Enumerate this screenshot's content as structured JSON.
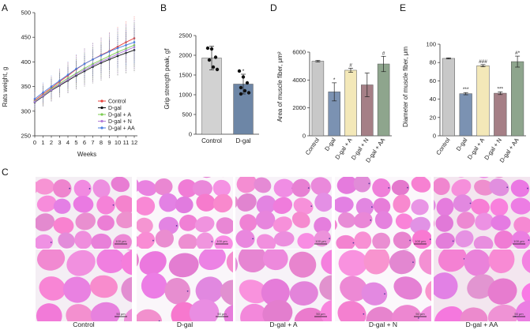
{
  "chart_data": [
    {
      "panel": "A",
      "type": "line",
      "ylabel": "Rats weight, g",
      "xlabel": "Weeks",
      "x": [
        0,
        1,
        2,
        3,
        4,
        5,
        6,
        7,
        8,
        9,
        10,
        11,
        12
      ],
      "ylim": [
        250,
        500
      ],
      "yticks": [
        250,
        300,
        350,
        400,
        450,
        500
      ],
      "legend_position": "bottom-right",
      "series": [
        {
          "name": "Control",
          "color": "#e8413c",
          "values": [
            322,
            335,
            347,
            360,
            372,
            385,
            396,
            405,
            414,
            422,
            431,
            440,
            448
          ]
        },
        {
          "name": "D-gal",
          "color": "#111111",
          "values": [
            318,
            330,
            342,
            352,
            362,
            372,
            381,
            390,
            398,
            405,
            412,
            418,
            424
          ]
        },
        {
          "name": "D-gal + A",
          "color": "#7ccc50",
          "values": [
            320,
            332,
            345,
            356,
            367,
            377,
            387,
            396,
            404,
            412,
            420,
            427,
            434
          ]
        },
        {
          "name": "D-gal + N",
          "color": "#b07cd8",
          "values": [
            319,
            331,
            343,
            354,
            364,
            375,
            384,
            393,
            401,
            408,
            416,
            423,
            430
          ]
        },
        {
          "name": "D-gal + AA",
          "color": "#4a7ee0",
          "values": [
            325,
            338,
            350,
            362,
            374,
            386,
            396,
            405,
            413,
            421,
            428,
            434,
            440
          ]
        }
      ]
    },
    {
      "panel": "B",
      "type": "bar",
      "ylabel": "Grip strength peak, gf",
      "categories": [
        "Control",
        "D-gal"
      ],
      "values": [
        1930,
        1270
      ],
      "errors": [
        300,
        250
      ],
      "colors": [
        "#d2d2d2",
        "#6d86a6"
      ],
      "ylim": [
        0,
        2500
      ],
      "yticks": [
        0,
        500,
        1000,
        1500,
        2000,
        2500
      ],
      "annotations": [
        "",
        "*"
      ],
      "points": [
        [
          2180,
          2160,
          1950,
          1880,
          1700,
          1640
        ],
        [
          1600,
          1450,
          1300,
          1180,
          1100,
          1050,
          1020
        ]
      ]
    },
    {
      "panel": "D",
      "type": "bar",
      "ylabel": "Area of muscle fiber, μm²",
      "categories": [
        "Control",
        "D-gal",
        "D-gal + A",
        "D-gal + N",
        "D-gal + AA"
      ],
      "values": [
        5350,
        3150,
        4700,
        3650,
        5150
      ],
      "errors": [
        60,
        650,
        150,
        850,
        550
      ],
      "colors": [
        "#c8c8c8",
        "#7b92b2",
        "#f3e8b8",
        "#a57f86",
        "#8ea58d"
      ],
      "ylim": [
        0,
        6000
      ],
      "yticks": [
        0,
        2000,
        4000,
        6000
      ],
      "annotations": [
        "",
        "*",
        "#",
        "",
        "#"
      ]
    },
    {
      "panel": "E",
      "type": "bar",
      "ylabel": "Diameter of muscle fiber, μm",
      "categories": [
        "Control",
        "D-gal",
        "D-gal + A",
        "D-gal + N",
        "D-gal + AA"
      ],
      "values": [
        84.5,
        46,
        76.5,
        46.5,
        81
      ],
      "errors": [
        0.6,
        1.2,
        1.2,
        1.5,
        6
      ],
      "colors": [
        "#c8c8c8",
        "#7b92b2",
        "#f3e8b8",
        "#a57f86",
        "#8ea58d"
      ],
      "ylim": [
        0,
        100
      ],
      "yticks": [
        0,
        20,
        40,
        60,
        80,
        100
      ],
      "annotations": [
        "",
        "***",
        "###",
        "***",
        "#*"
      ]
    }
  ],
  "labels": {
    "A": "A",
    "B": "B",
    "C": "C",
    "D": "D",
    "E": "E"
  },
  "histology": {
    "columns": [
      "Control",
      "D-gal",
      "D-gal + A",
      "D-gal + N",
      "D-gal + AA"
    ],
    "top_scale": [
      "100 μm",
      "100 μm",
      "100 μm",
      "100 μm",
      "100 μm"
    ],
    "bottom_scale": [
      "50 μm",
      "50 μm",
      "50 μm",
      "50 μm",
      "50 μm"
    ]
  }
}
